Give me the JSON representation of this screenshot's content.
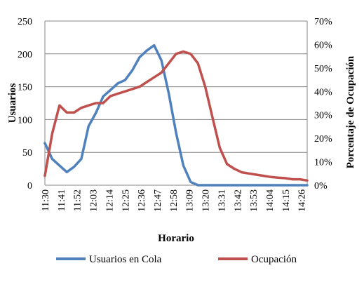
{
  "chart_data": {
    "type": "line",
    "x_tick_labels": [
      "11:30",
      "11:41",
      "11:52",
      "12:03",
      "12:14",
      "12:25",
      "12:36",
      "12:47",
      "12:58",
      "13:09",
      "13:20",
      "13:31",
      "13:42",
      "13:53",
      "14:04",
      "14:15",
      "14:26"
    ],
    "x": [
      "11:30",
      "11:35",
      "11:40",
      "11:45",
      "11:50",
      "11:55",
      "12:00",
      "12:05",
      "12:10",
      "12:15",
      "12:20",
      "12:25",
      "12:30",
      "12:35",
      "12:40",
      "12:45",
      "12:50",
      "12:55",
      "13:00",
      "13:05",
      "13:10",
      "13:15",
      "13:20",
      "13:25",
      "13:30",
      "13:35",
      "13:40",
      "13:45",
      "13:50",
      "13:55",
      "14:00",
      "14:05",
      "14:10",
      "14:15",
      "14:20",
      "14:25",
      "14:30"
    ],
    "xlabel": "Horario",
    "ylabel": "Usuarios",
    "y2label": "Porcentaje de Ocupación",
    "ylim": [
      0,
      250
    ],
    "y_ticks": [
      0,
      50,
      100,
      150,
      200,
      250
    ],
    "y2lim": [
      0,
      0.7
    ],
    "y2_tick_labels": [
      "0%",
      "10%",
      "20%",
      "30%",
      "40%",
      "50%",
      "60%",
      "70%"
    ],
    "grid": "horizontal",
    "legend_position": "bottom",
    "series": [
      {
        "name": "Usuarios en Cola",
        "axis": "left",
        "color": "#4F81BD",
        "values": [
          64,
          40,
          30,
          20,
          28,
          40,
          90,
          110,
          135,
          145,
          155,
          160,
          175,
          195,
          205,
          213,
          190,
          140,
          80,
          30,
          5,
          0,
          0,
          0,
          0,
          0,
          0,
          0,
          0,
          0,
          0,
          0,
          0,
          0,
          0,
          0,
          0
        ]
      },
      {
        "name": "Ocupación",
        "axis": "right",
        "color": "#C0504D",
        "values": [
          0.04,
          0.22,
          0.34,
          0.31,
          0.31,
          0.33,
          0.34,
          0.35,
          0.35,
          0.38,
          0.39,
          0.4,
          0.41,
          0.42,
          0.44,
          0.46,
          0.48,
          0.52,
          0.56,
          0.57,
          0.56,
          0.52,
          0.42,
          0.29,
          0.16,
          0.09,
          0.07,
          0.055,
          0.05,
          0.045,
          0.04,
          0.035,
          0.032,
          0.03,
          0.025,
          0.025,
          0.02
        ]
      }
    ]
  }
}
